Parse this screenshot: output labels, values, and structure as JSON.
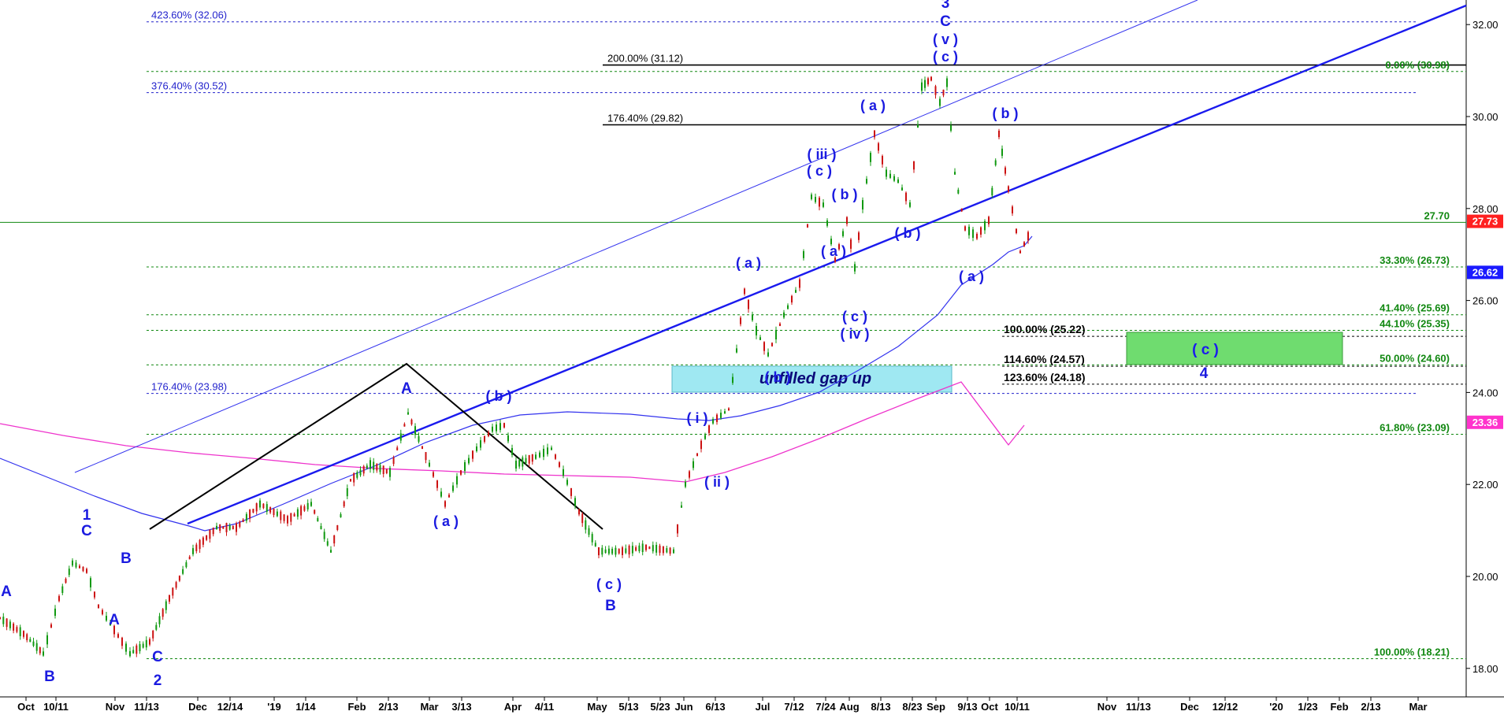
{
  "chart_data": {
    "type": "candlestick",
    "ylim": [
      17.5,
      32.5
    ],
    "y_ticks": [
      "18.00",
      "20.00",
      "22.00",
      "24.00",
      "26.00",
      "28.00",
      "30.00",
      "32.00"
    ],
    "x_labels": [
      "Oct",
      "10/11",
      "Nov",
      "11/13",
      "Dec",
      "12/14",
      "'19",
      "1/14",
      "Feb",
      "2/13",
      "Mar",
      "3/13",
      "Apr",
      "4/11",
      "May",
      "5/13",
      "5/23",
      "Jun",
      "6/13",
      "Jul",
      "7/12",
      "7/24",
      "Aug",
      "8/13",
      "8/23",
      "Sep",
      "9/13",
      "Oct",
      "10/11",
      "Nov",
      "11/13",
      "Dec",
      "12/12",
      "'20",
      "1/23",
      "Feb",
      "2/13",
      "Mar"
    ],
    "price_tags": [
      {
        "label": "27.73",
        "value": 27.73,
        "color": "#ff2020"
      },
      {
        "label": "26.62",
        "value": 26.62,
        "color": "#1a1aff"
      },
      {
        "label": "23.36",
        "value": 23.36,
        "color": "#ff33cc"
      }
    ],
    "fib_levels": [
      {
        "label": "423.60% (32.06)",
        "value": 32.06,
        "color": "#2222cc",
        "side": "left"
      },
      {
        "label": "376.40% (30.52)",
        "value": 30.52,
        "color": "#2222cc",
        "side": "left"
      },
      {
        "label": "176.40% (23.98)",
        "value": 23.98,
        "color": "#2222cc",
        "side": "left"
      },
      {
        "label": "200.00% (31.12)",
        "value": 31.12,
        "color": "#000000",
        "side": "mid"
      },
      {
        "label": "176.40% (29.82)",
        "value": 29.82,
        "color": "#000000",
        "side": "mid"
      },
      {
        "label": "100.00% (25.22)",
        "value": 25.22,
        "color": "#000000",
        "side": "low"
      },
      {
        "label": "114.60% (24.57)",
        "value": 24.57,
        "color": "#000000",
        "side": "low"
      },
      {
        "label": "123.60% (24.18)",
        "value": 24.18,
        "color": "#000000",
        "side": "low"
      },
      {
        "label": "0.00% (30.98)",
        "value": 30.98,
        "color": "#118811",
        "side": "right"
      },
      {
        "label": "27.70",
        "value": 27.7,
        "color": "#118811",
        "side": "right"
      },
      {
        "label": "33.30% (26.73)",
        "value": 26.73,
        "color": "#118811",
        "side": "right"
      },
      {
        "label": "41.40% (25.69)",
        "value": 25.69,
        "color": "#118811",
        "side": "right"
      },
      {
        "label": "44.10% (25.35)",
        "value": 25.35,
        "color": "#118811",
        "side": "right"
      },
      {
        "label": "50.00% (24.60)",
        "value": 24.6,
        "color": "#118811",
        "side": "right"
      },
      {
        "label": "61.80% (23.09)",
        "value": 23.09,
        "color": "#118811",
        "side": "right"
      },
      {
        "label": "100.00% (18.21)",
        "value": 18.21,
        "color": "#118811",
        "side": "right"
      }
    ],
    "wave_labels": [
      "A",
      "B",
      "1",
      "C",
      "B",
      "A",
      "C",
      "2",
      "A",
      "( a )",
      "( b )",
      "( c )",
      "B",
      "( i )",
      "( ii )",
      "( a )",
      "( b )",
      "( a )",
      "( b )",
      "( iii )",
      "( c )",
      "( c )",
      "( iv )",
      "( a )",
      "( b )",
      "3",
      "C",
      "( v )",
      "( c )",
      "( a )",
      "( b )",
      "( c )",
      "4"
    ],
    "annotations": {
      "gap_label": "unfilled gap up",
      "target_label": "( c )"
    },
    "colors": {
      "up_candle": "#119911",
      "down_candle": "#cc1111",
      "trendline": "#1a1aee",
      "ma_blue": "#3333ee",
      "ma_magenta": "#ee33cc",
      "gap_box": "#99e6f0",
      "target_box": "#66dd66"
    }
  }
}
